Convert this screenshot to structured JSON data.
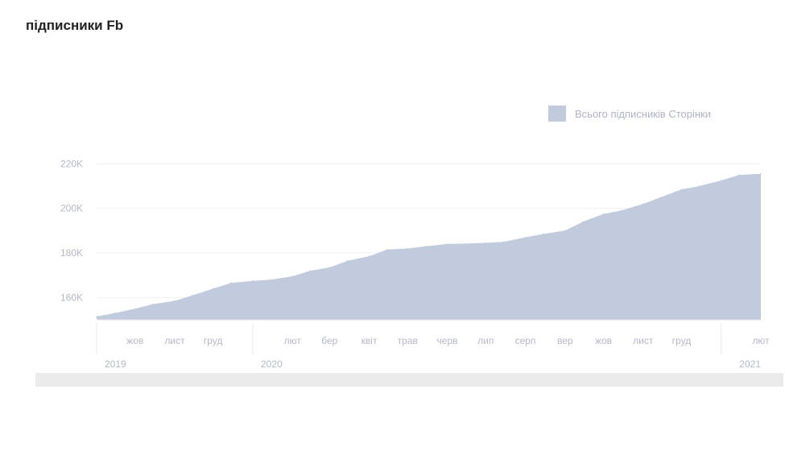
{
  "page": {
    "title": "підписники Fb"
  },
  "colors": {
    "area_fill": "#c2cadd",
    "legend_swatch": "#c2cadd",
    "axis_text": "#b3b8c4",
    "grid": "#eef0f4",
    "bottom_bar": "#ebebeb"
  },
  "chart_data": {
    "type": "area",
    "title": "",
    "xlabel": "",
    "ylabel": "",
    "legend": {
      "position": "top-right",
      "entries": [
        "Всього підписників Сторінки"
      ]
    },
    "series": [
      {
        "name": "Всього підписників Сторінки",
        "x": [
          "2019-09-01",
          "2019-09-15",
          "2019-10-01",
          "2019-10-15",
          "2019-11-01",
          "2019-11-15",
          "2019-12-01",
          "2019-12-15",
          "2020-01-01",
          "2020-01-15",
          "2020-02-01",
          "2020-02-15",
          "2020-03-01",
          "2020-03-15",
          "2020-04-01",
          "2020-04-15",
          "2020-05-01",
          "2020-05-15",
          "2020-06-01",
          "2020-06-15",
          "2020-07-01",
          "2020-07-15",
          "2020-08-01",
          "2020-08-15",
          "2020-09-01",
          "2020-09-15",
          "2020-10-01",
          "2020-10-15",
          "2020-11-01",
          "2020-11-15",
          "2020-12-01",
          "2020-12-15",
          "2021-01-01",
          "2021-01-15",
          "2021-02-01"
        ],
        "values": [
          151500,
          153000,
          155000,
          157000,
          158500,
          161000,
          164000,
          166500,
          167500,
          168000,
          169500,
          172000,
          173500,
          176500,
          178500,
          181500,
          182000,
          183000,
          184000,
          184200,
          184500,
          185000,
          187000,
          188500,
          190000,
          194000,
          197500,
          199000,
          202000,
          205000,
          208500,
          210000,
          212500,
          215000,
          215500
        ]
      }
    ],
    "y_ticks": [
      160000,
      180000,
      200000,
      220000
    ],
    "y_tick_labels": [
      "160K",
      "180K",
      "200K",
      "220K"
    ],
    "ylim": [
      150000,
      223000
    ],
    "x_tick_labels": [
      {
        "label": "жов",
        "date": "2019-10-01"
      },
      {
        "label": "лист",
        "date": "2019-11-01"
      },
      {
        "label": "груд",
        "date": "2019-12-01"
      },
      {
        "label": "лют",
        "date": "2020-02-01"
      },
      {
        "label": "бер",
        "date": "2020-03-01"
      },
      {
        "label": "квіт",
        "date": "2020-04-01"
      },
      {
        "label": "трав",
        "date": "2020-05-01"
      },
      {
        "label": "черв",
        "date": "2020-06-01"
      },
      {
        "label": "лип",
        "date": "2020-07-01"
      },
      {
        "label": "серп",
        "date": "2020-08-01"
      },
      {
        "label": "вер",
        "date": "2020-09-01"
      },
      {
        "label": "жов",
        "date": "2020-10-01"
      },
      {
        "label": "лист",
        "date": "2020-11-01"
      },
      {
        "label": "груд",
        "date": "2020-12-01"
      },
      {
        "label": "лют",
        "date": "2021-02-01"
      }
    ],
    "year_labels": [
      {
        "label": "2019",
        "date": "2019-09-01"
      },
      {
        "label": "2020",
        "date": "2020-01-01"
      },
      {
        "label": "2021",
        "date": "2021-01-01"
      }
    ],
    "x_range": [
      "2019-09-01",
      "2021-02-01"
    ],
    "grid": true
  }
}
